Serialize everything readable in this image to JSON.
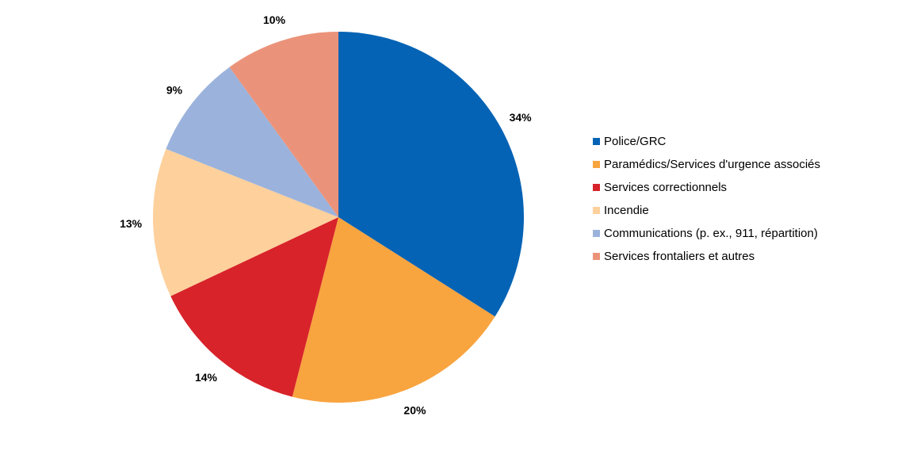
{
  "chart_data": {
    "type": "pie",
    "title": "",
    "categories": [
      "Police/GRC",
      "Paramédics/Services d'urgence associés",
      "Services correctionnels",
      "Incendie",
      "Communications (p. ex., 911, répartition)",
      "Services frontaliers et autres"
    ],
    "values": [
      34,
      20,
      14,
      13,
      9,
      10
    ],
    "data_labels": [
      "34%",
      "20%",
      "14%",
      "13%",
      "9%",
      "10%"
    ],
    "colors": [
      "#0563B5",
      "#F8A43F",
      "#D8232A",
      "#FDD09C",
      "#9BB3DC",
      "#EB937A"
    ],
    "start_angle_deg": 0,
    "direction": "clockwise",
    "legend_position": "right"
  }
}
